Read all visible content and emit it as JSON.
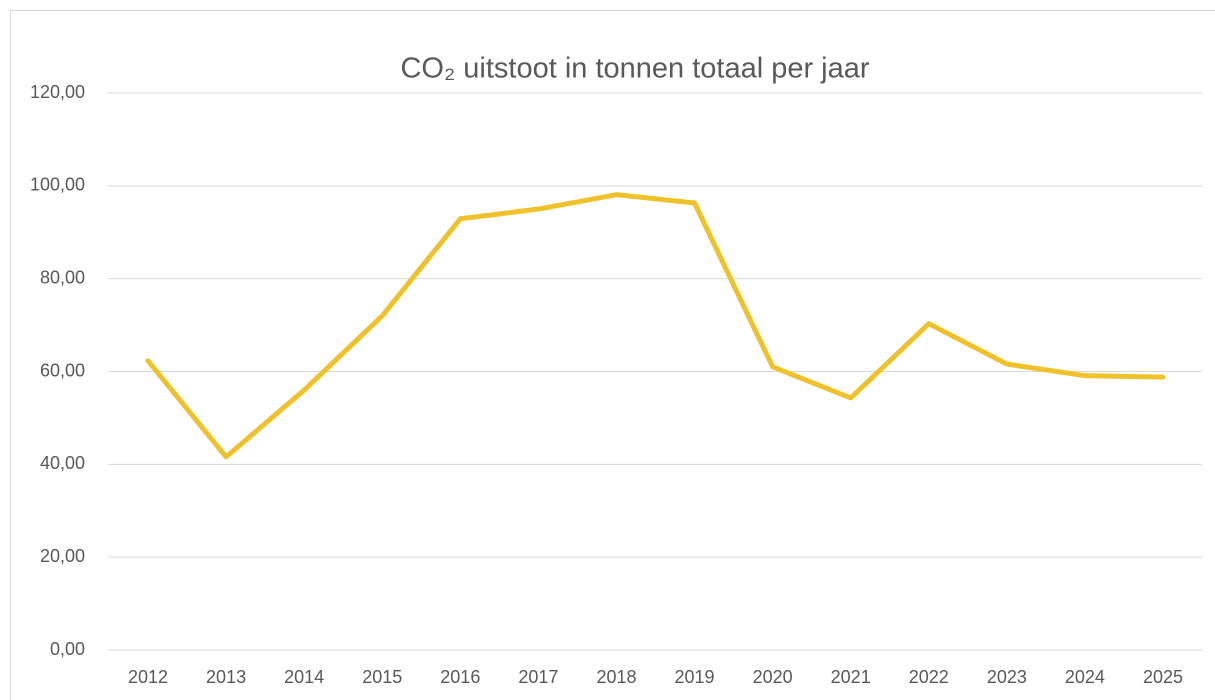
{
  "chart_data": {
    "type": "line",
    "title": "CO₂ uitstoot in tonnen totaal per jaar",
    "categories": [
      "2012",
      "2013",
      "2014",
      "2015",
      "2016",
      "2017",
      "2018",
      "2019",
      "2020",
      "2021",
      "2022",
      "2023",
      "2024",
      "2025"
    ],
    "values": [
      62.3,
      41.6,
      56.0,
      72.0,
      92.9,
      95.0,
      98.1,
      96.3,
      61.0,
      54.3,
      70.3,
      61.6,
      59.1,
      58.8
    ],
    "color": "#efc12a",
    "ylim": [
      0,
      120
    ],
    "yticks": [
      {
        "value": 0,
        "label": "0,00"
      },
      {
        "value": 20,
        "label": "20,00"
      },
      {
        "value": 40,
        "label": "40,00"
      },
      {
        "value": 60,
        "label": "60,00"
      },
      {
        "value": 80,
        "label": "80,00"
      },
      {
        "value": 100,
        "label": "100,00"
      },
      {
        "value": 120,
        "label": "120,00"
      }
    ],
    "grid": true
  }
}
